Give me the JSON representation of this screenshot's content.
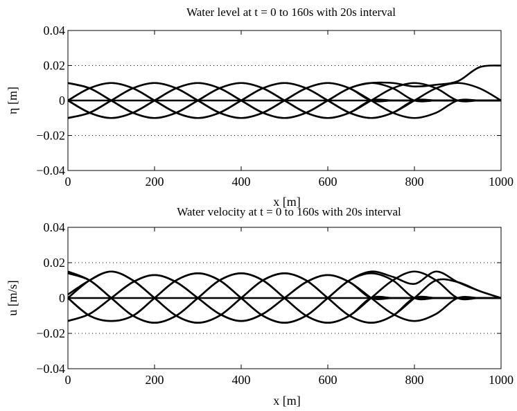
{
  "chart_data": [
    {
      "type": "line",
      "title": "Water level at t = 0 to 160s with 20s interval",
      "xlabel": "x [m]",
      "ylabel": "η [m]",
      "xlim": [
        0,
        1000
      ],
      "ylim": [
        -0.04,
        0.04
      ],
      "xticks": [
        "0",
        "200",
        "400",
        "600",
        "800",
        "1000"
      ],
      "yticks": [
        "0.04",
        "0.02",
        "0",
        "-0.02",
        "-0.04"
      ],
      "ytick_values": [
        0.04,
        0.02,
        0,
        -0.02,
        -0.04
      ],
      "grid": "dotted horizontal at ±0.02",
      "line_color": "#000000",
      "x": [
        0,
        50,
        100,
        150,
        200,
        250,
        300,
        350,
        400,
        450,
        500,
        550,
        600,
        650,
        700,
        750,
        800,
        850,
        900,
        950,
        1000
      ],
      "series": [
        {
          "values": [
            0.0,
            0.0,
            0.0,
            0.0,
            0.0,
            0.0,
            0.0,
            0.0,
            0.0,
            0.0,
            0.0,
            0.0,
            0.0,
            0.0,
            0.0,
            0.0,
            0.0,
            0.0,
            0.0,
            0.0,
            0.0
          ]
        },
        {
          "values": [
            0.01,
            0.007,
            0.0,
            -0.007,
            -0.01,
            -0.007,
            0.0,
            0.007,
            0.01,
            0.007,
            0.0,
            -0.007,
            -0.01,
            -0.007,
            0.0,
            0.0,
            0.0,
            0.0,
            0.0,
            0.0,
            0.0
          ]
        },
        {
          "values": [
            -0.01,
            -0.007,
            0.0,
            0.007,
            0.01,
            0.007,
            0.0,
            -0.007,
            -0.01,
            -0.007,
            0.0,
            0.007,
            0.01,
            0.007,
            0.0,
            0.0,
            0.0,
            0.0,
            0.0,
            0.0,
            0.0
          ]
        },
        {
          "values": [
            0.0,
            0.007,
            0.01,
            0.007,
            0.0,
            -0.007,
            -0.01,
            -0.007,
            0.0,
            0.007,
            0.01,
            0.007,
            0.0,
            -0.007,
            -0.01,
            -0.007,
            0.0,
            0.0,
            0.0,
            0.0,
            0.0
          ]
        },
        {
          "values": [
            0.0,
            -0.007,
            -0.01,
            -0.007,
            0.0,
            0.007,
            0.01,
            0.007,
            0.0,
            -0.007,
            -0.01,
            -0.007,
            0.0,
            0.007,
            0.01,
            0.007,
            0.0,
            0.0,
            0.0,
            0.0,
            0.0
          ]
        },
        {
          "values": [
            0.01,
            0.007,
            0.0,
            -0.007,
            -0.01,
            -0.007,
            0.0,
            0.007,
            0.01,
            0.007,
            0.0,
            -0.007,
            -0.01,
            -0.007,
            0.0,
            0.007,
            0.01,
            0.007,
            0.0,
            0.0,
            0.0
          ]
        },
        {
          "values": [
            0.0,
            0.007,
            0.01,
            0.007,
            0.0,
            -0.007,
            -0.01,
            -0.007,
            0.0,
            0.007,
            0.01,
            0.007,
            0.0,
            -0.007,
            -0.01,
            -0.007,
            0.0,
            0.007,
            0.01,
            0.007,
            0.0
          ]
        },
        {
          "values": [
            -0.01,
            -0.007,
            0.0,
            0.007,
            0.01,
            0.007,
            0.0,
            -0.007,
            -0.01,
            -0.007,
            0.0,
            0.007,
            0.01,
            0.007,
            0.0,
            -0.007,
            -0.01,
            -0.007,
            0.0,
            0.0,
            0.0
          ]
        },
        {
          "values": [
            0.0,
            -0.007,
            -0.01,
            -0.007,
            0.0,
            0.007,
            0.01,
            0.007,
            0.0,
            -0.007,
            -0.01,
            -0.007,
            0.0,
            0.007,
            0.01,
            0.01,
            0.008,
            0.009,
            0.011,
            0.019,
            0.02
          ]
        }
      ]
    },
    {
      "type": "line",
      "title": "Water velocity at t = 0 to 160s with 20s interval",
      "xlabel": "x [m]",
      "ylabel": "u [m/s]",
      "xlim": [
        0,
        1000
      ],
      "ylim": [
        -0.04,
        0.04
      ],
      "xticks": [
        "0",
        "200",
        "400",
        "600",
        "800",
        "1000"
      ],
      "yticks": [
        "0.04",
        "0.02",
        "0",
        "-0.02",
        "-0.04"
      ],
      "ytick_values": [
        0.04,
        0.02,
        0,
        -0.02,
        -0.04
      ],
      "grid": "dotted horizontal at ±0.02",
      "line_color": "#000000",
      "x": [
        0,
        50,
        100,
        150,
        200,
        250,
        300,
        350,
        400,
        450,
        500,
        550,
        600,
        650,
        700,
        750,
        800,
        850,
        900,
        950,
        1000
      ],
      "series": [
        {
          "values": [
            0.0,
            0.0,
            0.0,
            0.0,
            0.0,
            0.0,
            0.0,
            0.0,
            0.0,
            0.0,
            0.0,
            0.0,
            0.0,
            0.0,
            0.0,
            0.0,
            0.0,
            0.0,
            0.0,
            0.0,
            0.0
          ]
        },
        {
          "values": [
            0.014,
            0.01,
            0.0,
            -0.01,
            -0.014,
            -0.01,
            0.0,
            0.01,
            0.014,
            0.01,
            0.0,
            -0.01,
            -0.014,
            -0.01,
            0.0,
            0.0,
            0.0,
            0.0,
            0.0,
            0.0,
            0.0
          ]
        },
        {
          "values": [
            -0.013,
            -0.009,
            0.0,
            0.009,
            0.013,
            0.009,
            0.0,
            -0.009,
            -0.013,
            -0.009,
            0.0,
            0.009,
            0.013,
            0.009,
            0.0,
            0.0,
            0.0,
            0.0,
            0.0,
            0.0,
            0.0
          ]
        },
        {
          "values": [
            0.002,
            0.01,
            0.015,
            0.01,
            0.0,
            -0.01,
            -0.014,
            -0.01,
            0.0,
            0.01,
            0.014,
            0.01,
            0.0,
            -0.01,
            -0.014,
            -0.01,
            0.0,
            0.0,
            0.0,
            0.0,
            0.0
          ]
        },
        {
          "values": [
            0.0,
            -0.01,
            -0.013,
            -0.01,
            0.0,
            0.01,
            0.014,
            0.01,
            0.0,
            -0.01,
            -0.014,
            -0.01,
            0.0,
            0.01,
            0.014,
            0.01,
            0.0,
            0.0,
            0.0,
            0.0,
            0.0
          ]
        },
        {
          "values": [
            0.015,
            0.01,
            0.0,
            -0.01,
            -0.014,
            -0.01,
            0.0,
            0.01,
            0.014,
            0.01,
            0.0,
            -0.01,
            -0.014,
            -0.01,
            0.0,
            0.01,
            0.015,
            0.01,
            0.0,
            0.0,
            0.0
          ]
        },
        {
          "values": [
            0.0,
            0.01,
            0.015,
            0.01,
            0.0,
            -0.01,
            -0.014,
            -0.01,
            0.0,
            0.01,
            0.014,
            0.01,
            0.0,
            -0.01,
            -0.014,
            -0.01,
            0.0,
            0.01,
            0.009,
            0.004,
            0.0
          ]
        },
        {
          "values": [
            -0.013,
            -0.009,
            0.0,
            0.009,
            0.013,
            0.009,
            0.0,
            -0.009,
            -0.013,
            -0.009,
            0.0,
            0.009,
            0.013,
            0.009,
            0.0,
            -0.009,
            -0.013,
            -0.009,
            0.0,
            0.0,
            0.0
          ]
        },
        {
          "values": [
            0.0,
            -0.01,
            -0.013,
            -0.01,
            0.0,
            0.01,
            0.014,
            0.01,
            0.0,
            -0.01,
            -0.014,
            -0.01,
            0.0,
            0.01,
            0.015,
            0.012,
            0.008,
            0.015,
            0.009,
            0.004,
            0.0
          ]
        }
      ]
    }
  ]
}
